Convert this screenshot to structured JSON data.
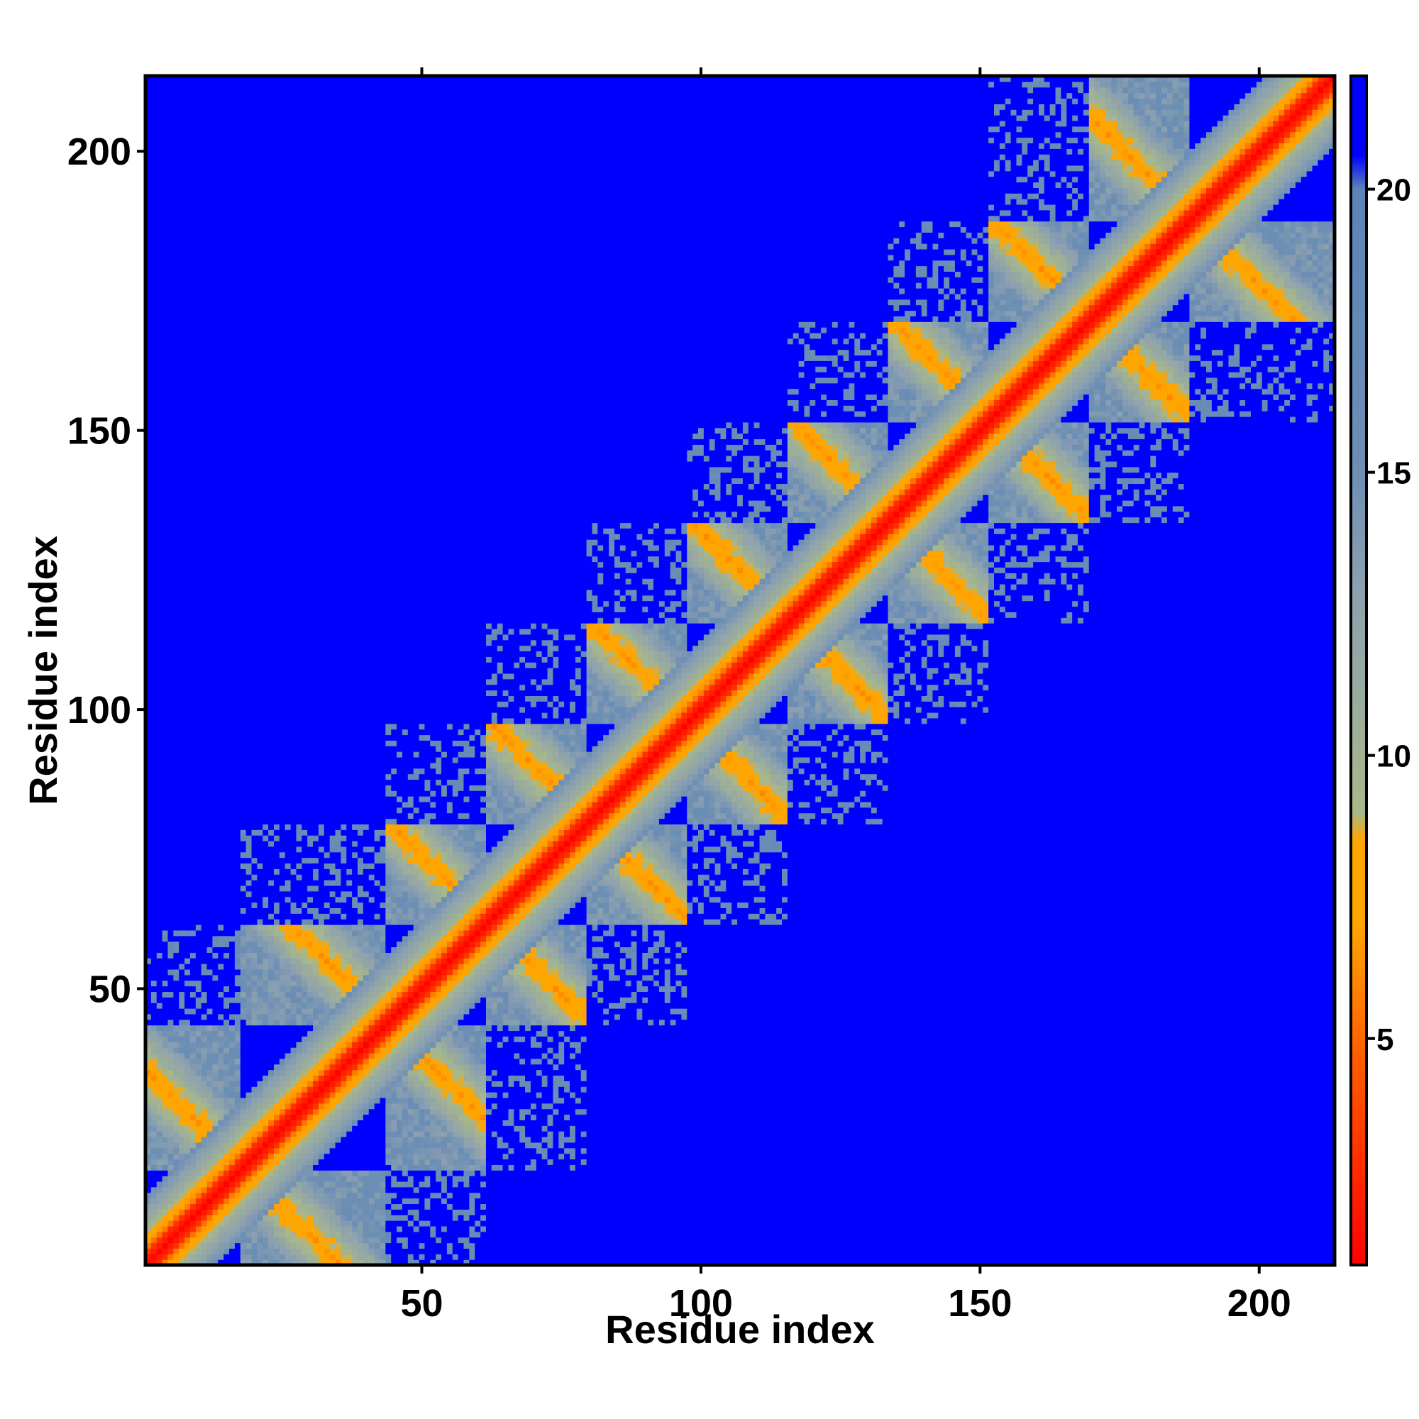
{
  "chart_data": {
    "type": "heatmap",
    "title": "",
    "xlabel": "Residue index",
    "ylabel": "Residue index",
    "xlim": [
      1,
      213
    ],
    "ylim": [
      1,
      213
    ],
    "x_ticks": [
      50,
      100,
      150,
      200
    ],
    "y_ticks": [
      50,
      100,
      150,
      200
    ],
    "n_residues": 213,
    "value_range": [
      1,
      22
    ],
    "colorbar": {
      "ticks": [
        5,
        10,
        15,
        20
      ],
      "stops": [
        {
          "value": 1,
          "color": "#ff0000"
        },
        {
          "value": 3,
          "color": "#ff3300"
        },
        {
          "value": 5,
          "color": "#ff6600"
        },
        {
          "value": 7,
          "color": "#ffa500"
        },
        {
          "value": 8.5,
          "color": "#ffa500"
        },
        {
          "value": 9,
          "color": "#a8b88a"
        },
        {
          "value": 13,
          "color": "#8ca0b0"
        },
        {
          "value": 15,
          "color": "#6d8fb4"
        },
        {
          "value": 20,
          "color": "#5b84b8"
        },
        {
          "value": 20.6,
          "color": "#0000ff"
        },
        {
          "value": 22,
          "color": "#0000ff"
        }
      ]
    },
    "structure": {
      "diagonal": "distance increases away from the main diagonal",
      "helix_boundaries": [
        1,
        18,
        44,
        62,
        80,
        98,
        116,
        134,
        152,
        170,
        188,
        213
      ],
      "far_value": 22
    }
  }
}
